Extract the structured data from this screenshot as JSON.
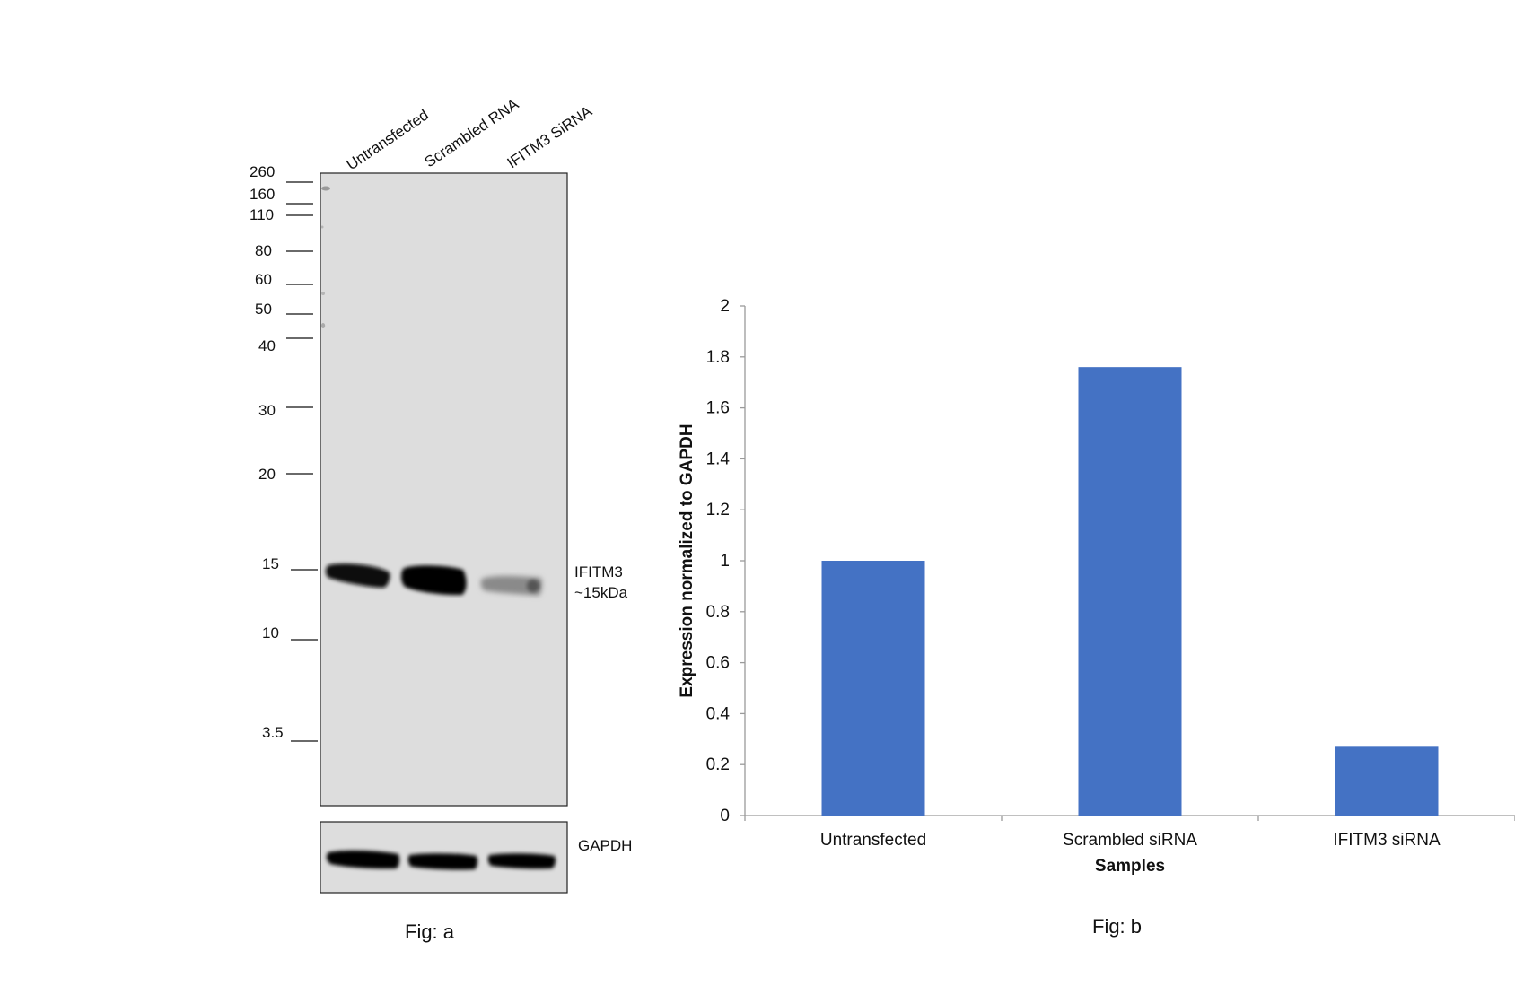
{
  "figure_a": {
    "caption": "Fig: a",
    "lanes": [
      "Untransfected",
      "Scrambled RNA",
      "IFITM3 SiRNA"
    ],
    "markers": [
      "260",
      "160",
      "110",
      "80",
      "60",
      "50",
      "40",
      "30",
      "20",
      "15",
      "10",
      "3.5"
    ],
    "band_label_line1": "IFITM3",
    "band_label_line2": "~15kDa",
    "loading_control_label": "GAPDH",
    "band_relative_intensity": [
      0.8,
      1.0,
      0.25
    ]
  },
  "figure_b": {
    "caption": "Fig: b",
    "bar_color": "#4472c4"
  },
  "chart_data": {
    "type": "bar",
    "categories": [
      "Untransfected",
      "Scrambled siRNA",
      "IFITM3 siRNA"
    ],
    "values": [
      1.0,
      1.76,
      0.27
    ],
    "xlabel": "Samples",
    "ylabel": "Expression normalized to GAPDH",
    "ylim": [
      0,
      2
    ],
    "yticks": [
      "0",
      "0.2",
      "0.4",
      "0.6",
      "0.8",
      "1",
      "1.2",
      "1.4",
      "1.6",
      "1.8",
      "2"
    ],
    "grid": false,
    "legend": "none"
  }
}
